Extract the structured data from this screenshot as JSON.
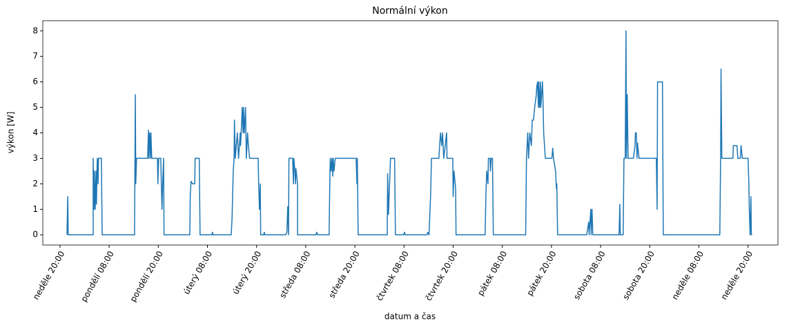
{
  "chart_data": {
    "type": "line",
    "title": "Normální výkon",
    "x_label": "datum a čas",
    "y_label": "výkon [W]",
    "xlim": [
      -4.2,
      175.3
    ],
    "ylim": [
      -0.4,
      8.4
    ],
    "xticks": [
      {
        "value": 0,
        "label": "neděle 20:00"
      },
      {
        "value": 12,
        "label": "pondělí 08:00"
      },
      {
        "value": 24,
        "label": "pondělí 20:00"
      },
      {
        "value": 36,
        "label": "úterý 08:00"
      },
      {
        "value": 48,
        "label": "úterý 20:00"
      },
      {
        "value": 60,
        "label": "středa 08:00"
      },
      {
        "value": 72,
        "label": "středa 20:00"
      },
      {
        "value": 84,
        "label": "čtvrtek 08:00"
      },
      {
        "value": 96,
        "label": "čtvrtek 20:00"
      },
      {
        "value": 108,
        "label": "pátek 08:00"
      },
      {
        "value": 120,
        "label": "pátek 20:00"
      },
      {
        "value": 132,
        "label": "sobota 08:00"
      },
      {
        "value": 144,
        "label": "sobota 20:00"
      },
      {
        "value": 156,
        "label": "neděle 08:00"
      },
      {
        "value": 168,
        "label": "neděle 20:00"
      }
    ],
    "yticks": [
      0,
      1,
      2,
      3,
      4,
      5,
      6,
      7,
      8
    ],
    "series": [
      {
        "color": "#1f77b4",
        "x": [
          1.7,
          1.9,
          2.0,
          8.1,
          8.1,
          8.3,
          8.4,
          8.6,
          8.8,
          8.9,
          9.1,
          9.3,
          9.4,
          10.1,
          10.3,
          18.2,
          18.4,
          18.5,
          18.7,
          21.4,
          21.6,
          21.7,
          21.9,
          22.1,
          22.2,
          22.4,
          23.8,
          23.9,
          24.1,
          24.6,
          24.9,
          25.1,
          25.3,
          25.4,
          31.7,
          31.8,
          32.0,
          32.4,
          32.9,
          33.0,
          34.0,
          34.2,
          37.1,
          37.2,
          37.4,
          41.8,
          42.0,
          42.3,
          42.5,
          42.6,
          42.8,
          43.3,
          43.6,
          44.0,
          44.1,
          44.5,
          44.7,
          44.8,
          45.0,
          45.3,
          45.5,
          45.8,
          46.0,
          46.3,
          48.4,
          48.5,
          48.7,
          48.9,
          49.0,
          49.7,
          49.9,
          50.0,
          55.1,
          55.4,
          55.6,
          55.8,
          55.9,
          56.8,
          57.0,
          57.1,
          57.3,
          57.5,
          57.6,
          58.0,
          58.0,
          62.5,
          62.7,
          62.9,
          65.7,
          65.9,
          66.0,
          66.2,
          66.4,
          66.6,
          66.7,
          66.9,
          67.2,
          72.3,
          72.5,
          72.6,
          72.8,
          79.9,
          80.0,
          80.2,
          80.7,
          81.7,
          81.9,
          83.9,
          84.1,
          84.3,
          89.6,
          89.8,
          90.1,
          90.5,
          90.7,
          92.5,
          92.7,
          92.9,
          93.2,
          93.4,
          93.7,
          94.4,
          94.5,
          95.9,
          96.0,
          96.2,
          96.6,
          96.7,
          103.8,
          104.0,
          104.2,
          104.5,
          104.6,
          105.0,
          105.1,
          105.3,
          105.6,
          105.8,
          113.7,
          113.9,
          114.2,
          114.4,
          114.7,
          115.1,
          115.3,
          115.6,
          115.9,
          116.3,
          116.4,
          116.6,
          116.8,
          116.9,
          117.1,
          117.3,
          117.4,
          117.8,
          117.9,
          118.1,
          118.5,
          120.1,
          120.3,
          120.5,
          121.0,
          121.2,
          121.3,
          121.5,
          128.6,
          128.7,
          129.1,
          129.2,
          129.6,
          129.7,
          129.9,
          130.1,
          136.5,
          136.7,
          136.8,
          137.5,
          137.7,
          138.0,
          138.2,
          138.3,
          138.5,
          138.7,
          140.0,
          140.4,
          140.5,
          140.7,
          140.9,
          141.0,
          141.4,
          145.6,
          145.8,
          145.9,
          147.1,
          147.3,
          161.1,
          161.3,
          161.4,
          161.6,
          164.3,
          164.4,
          165.3,
          165.5,
          166.1,
          166.3,
          166.6,
          168.0,
          168.2,
          168.3,
          168.5,
          168.7,
          168.8,
          169.0
        ],
        "values": [
          0,
          1.5,
          0,
          0,
          3,
          1,
          2.5,
          1,
          2.5,
          1.2,
          3,
          2,
          3,
          3,
          0,
          0,
          5.5,
          2,
          3,
          3,
          4.1,
          3,
          4,
          3,
          4,
          3,
          3,
          2,
          3,
          3,
          1,
          2.2,
          3,
          0,
          0,
          1.5,
          2.1,
          2,
          2,
          3,
          3,
          0,
          0,
          0.1,
          0,
          0,
          0.6,
          2.5,
          3,
          4.5,
          3,
          4,
          3,
          4,
          3.5,
          5,
          4,
          5,
          4,
          5,
          3,
          4,
          3.5,
          3,
          3,
          2,
          1,
          2,
          0,
          0,
          0.1,
          0,
          0,
          0.1,
          1.1,
          0,
          3,
          3,
          2,
          3,
          2.6,
          2,
          2.6,
          2,
          0,
          0,
          0.1,
          0,
          0,
          2.3,
          3,
          2.5,
          3,
          2.3,
          3,
          2.5,
          3,
          3,
          2,
          3,
          0,
          0,
          2.4,
          0.8,
          3,
          3,
          0,
          0,
          0.1,
          0,
          0,
          0.1,
          0,
          1.6,
          3,
          3,
          3.5,
          4,
          3.5,
          4,
          3,
          4,
          3,
          3,
          1.5,
          2.5,
          1.8,
          0,
          0,
          1.6,
          2.5,
          2,
          3,
          3,
          2.5,
          3,
          3,
          0,
          0,
          3,
          4,
          3,
          4,
          3.5,
          4.5,
          4.5,
          5,
          5.5,
          5.8,
          6,
          5,
          6,
          5,
          6,
          5,
          6,
          5.5,
          4,
          3,
          3,
          3.4,
          3,
          2.5,
          1.8,
          2,
          0,
          0,
          0.1,
          0.5,
          0,
          1,
          0,
          1,
          0,
          0,
          1.2,
          0,
          0,
          3,
          3,
          8,
          3,
          5.5,
          3,
          3,
          3.5,
          4,
          4,
          3,
          3.6,
          3,
          3,
          1,
          6,
          6,
          0,
          0,
          3,
          6.5,
          3,
          3,
          3.5,
          3.5,
          3,
          3,
          3.5,
          3,
          3,
          2,
          1,
          0,
          1.5,
          0,
          0
        ]
      }
    ]
  }
}
